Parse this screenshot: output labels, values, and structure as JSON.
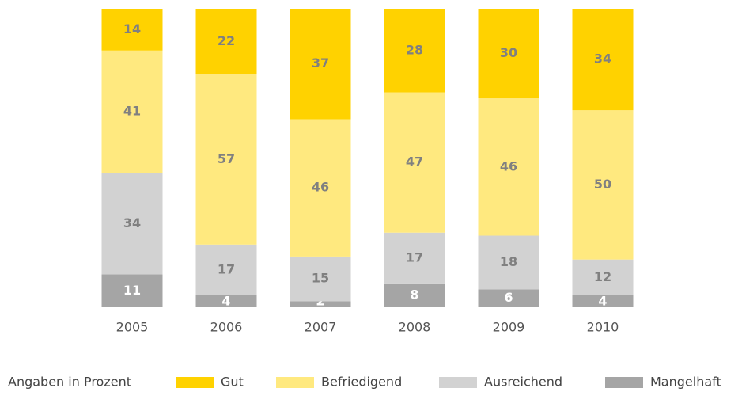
{
  "chart_data": {
    "type": "stacked_bar",
    "note": "Angaben in Prozent",
    "categories": [
      "2005",
      "2006",
      "2007",
      "2008",
      "2009",
      "2010"
    ],
    "series": [
      {
        "name": "Gut",
        "color": "#ffd200",
        "values": [
          14,
          22,
          37,
          28,
          30,
          34
        ]
      },
      {
        "name": "Befriedigend",
        "color": "#ffe97f",
        "values": [
          41,
          57,
          46,
          47,
          46,
          50
        ]
      },
      {
        "name": "Ausreichend",
        "color": "#d2d2d2",
        "values": [
          34,
          17,
          15,
          17,
          18,
          12
        ]
      },
      {
        "name": "Mangelhaft",
        "color": "#a5a5a5",
        "values": [
          11,
          4,
          2,
          8,
          6,
          4
        ]
      }
    ]
  }
}
